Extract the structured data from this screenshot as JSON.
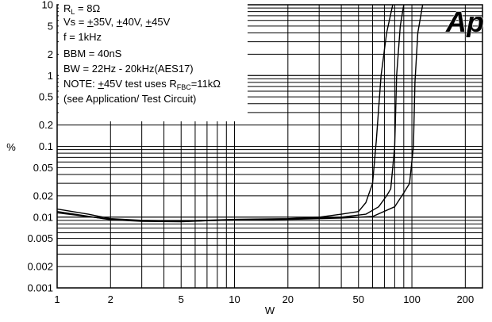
{
  "chart_data": {
    "type": "line",
    "title": "",
    "xlabel": "W",
    "ylabel": "%",
    "xscale": "log",
    "yscale": "log",
    "xlim": [
      1,
      250
    ],
    "ylim": [
      0.001,
      10
    ],
    "grid": true,
    "x_ticks": [
      1,
      2,
      5,
      10,
      20,
      50,
      100,
      200
    ],
    "x_tick_labels": [
      "1",
      "2",
      "5",
      "10",
      "20",
      "50",
      "100",
      "200"
    ],
    "y_ticks": [
      0.001,
      0.002,
      0.005,
      0.01,
      0.02,
      0.05,
      0.1,
      0.2,
      0.5,
      1,
      2,
      5,
      10
    ],
    "y_tick_labels": [
      "0.001",
      "0.002",
      "0.005",
      "0.01",
      "0.02",
      "0.05",
      "0.1",
      "0.2",
      "0.5",
      "1",
      "2",
      "5",
      "10"
    ],
    "series": [
      {
        "name": "Vs = ±35V",
        "points": [
          [
            1,
            0.013
          ],
          [
            1.5,
            0.011
          ],
          [
            2,
            0.0095
          ],
          [
            3,
            0.009
          ],
          [
            5,
            0.0088
          ],
          [
            10,
            0.0093
          ],
          [
            20,
            0.0095
          ],
          [
            30,
            0.01
          ],
          [
            40,
            0.011
          ],
          [
            50,
            0.012
          ],
          [
            55,
            0.016
          ],
          [
            60,
            0.03
          ],
          [
            63,
            0.12
          ],
          [
            67,
            1.0
          ],
          [
            72,
            4.0
          ],
          [
            78,
            10
          ]
        ]
      },
      {
        "name": "Vs = ±40V",
        "points": [
          [
            1,
            0.012
          ],
          [
            2,
            0.0092
          ],
          [
            3,
            0.0087
          ],
          [
            5,
            0.0086
          ],
          [
            10,
            0.0092
          ],
          [
            20,
            0.0094
          ],
          [
            40,
            0.01
          ],
          [
            55,
            0.011
          ],
          [
            65,
            0.014
          ],
          [
            72,
            0.02
          ],
          [
            76,
            0.025
          ],
          [
            80,
            0.1
          ],
          [
            82,
            1.0
          ],
          [
            86,
            5.0
          ],
          [
            90,
            10
          ]
        ]
      },
      {
        "name": "Vs = ±45V",
        "points": [
          [
            1,
            0.0115
          ],
          [
            2,
            0.0093
          ],
          [
            3,
            0.0088
          ],
          [
            5,
            0.0087
          ],
          [
            10,
            0.0091
          ],
          [
            20,
            0.0093
          ],
          [
            40,
            0.0097
          ],
          [
            60,
            0.0102
          ],
          [
            80,
            0.014
          ],
          [
            90,
            0.022
          ],
          [
            97,
            0.03
          ],
          [
            102,
            0.1
          ],
          [
            104,
            0.8
          ],
          [
            108,
            4.0
          ],
          [
            115,
            10
          ]
        ]
      }
    ]
  },
  "notes": {
    "rl_prefix": "R",
    "rl_sub": "L",
    "rl_value": " = 8Ω",
    "vs_prefix": "Vs = ",
    "vs_v1": "+",
    "vs_v1_rest": "35V, ",
    "vs_v2": "+",
    "vs_v2_rest": "40V, ",
    "vs_v3": "+",
    "vs_v3_rest": "45V",
    "freq": "f = 1kHz",
    "bbm": "BBM = 40nS",
    "bw": "BW = 22Hz - 20kHz(AES17)",
    "note_prefix": "NOTE: ",
    "note_pm": "+",
    "note_mid": "45V test uses R",
    "note_sub": "FBC",
    "note_suffix": "=11kΩ",
    "see": "(see Application/ Test Circuit)"
  },
  "logo": {
    "text": "Ap"
  },
  "colors": {
    "lines": "#000000",
    "background": "#ffffff"
  }
}
